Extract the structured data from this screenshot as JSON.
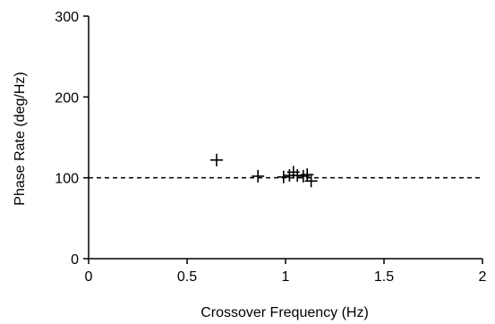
{
  "chart_data": {
    "type": "scatter",
    "xlabel": "Crossover Frequency (Hz)",
    "ylabel": "Phase Rate (deg/Hz)",
    "xlim": [
      0,
      2
    ],
    "ylim": [
      0,
      300
    ],
    "x_ticks": [
      0,
      0.5,
      1,
      1.5,
      2
    ],
    "x_tick_labels": [
      "0",
      "0.5",
      "1",
      "1.5",
      "2"
    ],
    "y_ticks": [
      0,
      100,
      200,
      300
    ],
    "y_tick_labels": [
      "0",
      "100",
      "200",
      "300"
    ],
    "grid": false,
    "legend": "none",
    "marker": "plus",
    "reference_line": {
      "y": 100,
      "style": "dashed"
    },
    "series": [
      {
        "x": [
          0.65,
          0.86,
          0.99,
          1.02,
          1.04,
          1.06,
          1.09,
          1.11,
          1.13
        ],
        "y": [
          122,
          102,
          101,
          103,
          107,
          103,
          102,
          104,
          96
        ]
      }
    ]
  }
}
